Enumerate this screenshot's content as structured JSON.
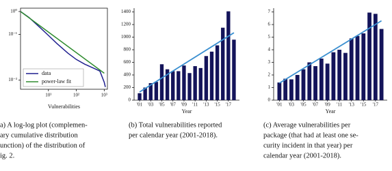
{
  "chart_data": [
    {
      "type": "line",
      "xscale": "log",
      "yscale": "log",
      "x_label": "Vulnerabilities",
      "xlim": [
        1,
        1300
      ],
      "ylim": [
        0.0004,
        1.4
      ],
      "xticks": [
        {
          "value": 10,
          "label": "10¹"
        },
        {
          "value": 100,
          "label": "10²"
        },
        {
          "value": 1000,
          "label": "10³"
        }
      ],
      "yticks": [
        {
          "value": 1,
          "label": "10⁰"
        },
        {
          "value": 0.1,
          "label": "10⁻¹"
        },
        {
          "value": 0.001,
          "label": "10⁻³"
        }
      ],
      "legend": "lower left",
      "series": [
        {
          "name": "data",
          "color": "#1f1f8f",
          "x": [
            1,
            2,
            5,
            10,
            20,
            50,
            100,
            200,
            300,
            500,
            700,
            1000,
            1100
          ],
          "values": [
            1,
            0.55,
            0.2,
            0.09,
            0.04,
            0.015,
            0.008,
            0.005,
            0.004,
            0.003,
            0.0025,
            0.0008,
            0.0005
          ]
        },
        {
          "name": "power-law fit",
          "color": "#2e8b2e",
          "x": [
            1,
            1000
          ],
          "values": [
            1,
            0.002
          ]
        }
      ],
      "caption": [
        "a) A log-log plot (complemen-",
        "ary cumulative distribution",
        "unction) of the distribution of",
        "ig. 2."
      ]
    },
    {
      "type": "bar",
      "x_label": "Year",
      "color": "#14145a",
      "trend_color": "#3a8fd0",
      "categories": [
        "'01",
        null,
        "'03",
        null,
        "'05",
        null,
        "'07",
        null,
        "'09",
        null,
        "'11",
        null,
        "'13",
        null,
        "'15",
        null,
        "'17",
        null
      ],
      "values": [
        110,
        200,
        270,
        290,
        570,
        490,
        460,
        460,
        550,
        430,
        540,
        510,
        700,
        770,
        870,
        1150,
        1410,
        960
      ],
      "trend": [
        130,
        1070
      ],
      "ylim": [
        0,
        1460
      ],
      "yticks": [
        0,
        200,
        400,
        600,
        800,
        1000,
        1200,
        1400
      ],
      "caption": [
        "(b) Total vulnerabilities reported",
        "per calendar year (2001-2018)."
      ]
    },
    {
      "type": "bar",
      "x_label": "Year",
      "color": "#14145a",
      "trend_color": "#3a8fd0",
      "categories": [
        "'01",
        null,
        "'03",
        null,
        "'05",
        null,
        "'07",
        null,
        "'09",
        null,
        "'11",
        null,
        "'13",
        null,
        "'15",
        null,
        "'17",
        null
      ],
      "values": [
        1.4,
        1.7,
        1.65,
        2.0,
        2.45,
        3.0,
        2.7,
        3.3,
        2.9,
        3.8,
        4.0,
        3.75,
        4.9,
        5.1,
        5.3,
        6.95,
        6.85,
        5.65
      ],
      "trend": [
        1.35,
        6.3
      ],
      "ylim": [
        0,
        7.3
      ],
      "yticks": [
        0,
        1,
        2,
        3,
        4,
        5,
        6,
        7
      ],
      "caption": [
        "(c) Average vulnerabilities per",
        "package (that had at least one se-",
        "curity incident in that year) per",
        "calendar year (2001-2018)."
      ]
    }
  ]
}
